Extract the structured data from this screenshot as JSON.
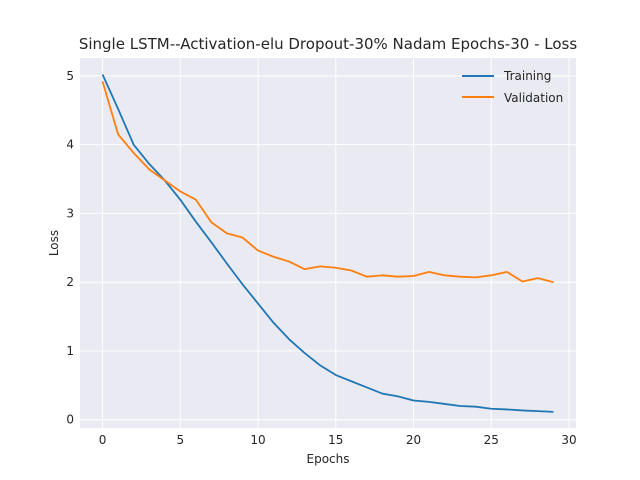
{
  "chart_data": {
    "type": "line",
    "title": "Single LSTM--Activation-elu Dropout-30% Nadam Epochs-30 - Loss",
    "xlabel": "Epochs",
    "ylabel": "Loss",
    "xlim": [
      -1.45,
      30.45
    ],
    "ylim": [
      -0.12,
      5.26
    ],
    "xticks": [
      0,
      5,
      10,
      15,
      20,
      25,
      30
    ],
    "yticks": [
      0,
      1,
      2,
      3,
      4,
      5
    ],
    "grid": true,
    "legend_position": "top-right",
    "x": [
      0,
      1,
      2,
      3,
      4,
      5,
      6,
      7,
      8,
      9,
      10,
      11,
      12,
      13,
      14,
      15,
      16,
      17,
      18,
      19,
      20,
      21,
      22,
      23,
      24,
      25,
      26,
      27,
      28,
      29
    ],
    "series": [
      {
        "name": "Training",
        "color": "#1f77b4",
        "values": [
          5.02,
          4.52,
          4.0,
          3.72,
          3.48,
          3.2,
          2.88,
          2.58,
          2.27,
          1.97,
          1.69,
          1.41,
          1.17,
          0.97,
          0.79,
          0.65,
          0.56,
          0.47,
          0.38,
          0.34,
          0.28,
          0.26,
          0.23,
          0.2,
          0.19,
          0.16,
          0.15,
          0.135,
          0.125,
          0.115
        ]
      },
      {
        "name": "Validation",
        "color": "#ff7f0e",
        "values": [
          4.92,
          4.15,
          3.88,
          3.64,
          3.48,
          3.32,
          3.2,
          2.87,
          2.71,
          2.65,
          2.46,
          2.37,
          2.3,
          2.19,
          2.23,
          2.21,
          2.17,
          2.08,
          2.1,
          2.08,
          2.09,
          2.15,
          2.1,
          2.08,
          2.07,
          2.1,
          2.15,
          2.01,
          2.06,
          2.0
        ]
      }
    ]
  }
}
